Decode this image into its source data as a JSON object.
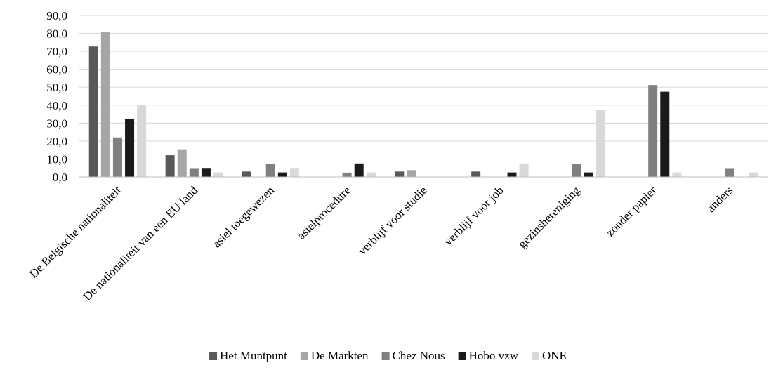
{
  "chart_data": {
    "type": "bar",
    "title": "",
    "xlabel": "",
    "ylabel": "",
    "ylim": [
      0,
      90
    ],
    "yticks": [
      "0,0",
      "10,0",
      "20,0",
      "30,0",
      "40,0",
      "50,0",
      "60,0",
      "70,0",
      "80,0",
      "90,0"
    ],
    "grid": true,
    "legend_position": "bottom",
    "categories": [
      "De Belgische nationaliteit",
      "De nationaliteit van een EU land",
      "asiel toegewezen",
      "asielprocedure",
      "verblijf voor studie",
      "verblijf voor job",
      "gezinshereniging",
      "zonder papier",
      "anders"
    ],
    "series": [
      {
        "name": "Het Muntpunt",
        "color": "#595959",
        "values": [
          72.7,
          12.1,
          3.0,
          0,
          3.0,
          3.0,
          0,
          0,
          0
        ]
      },
      {
        "name": "De Markten",
        "color": "#a6a6a6",
        "values": [
          80.8,
          15.4,
          0,
          0,
          3.8,
          0,
          0,
          0,
          0
        ]
      },
      {
        "name": "Chez Nous",
        "color": "#808080",
        "values": [
          22.0,
          4.9,
          7.3,
          2.4,
          0,
          0,
          7.3,
          51.2,
          4.9
        ]
      },
      {
        "name": "Hobo vzw",
        "color": "#1a1a1a",
        "values": [
          32.5,
          5.0,
          2.5,
          7.5,
          0,
          2.5,
          2.5,
          47.5,
          0
        ]
      },
      {
        "name": "ONE",
        "color": "#d9d9d9",
        "values": [
          40.0,
          2.5,
          5.0,
          2.5,
          0,
          7.5,
          37.5,
          2.5,
          2.5
        ]
      }
    ]
  }
}
